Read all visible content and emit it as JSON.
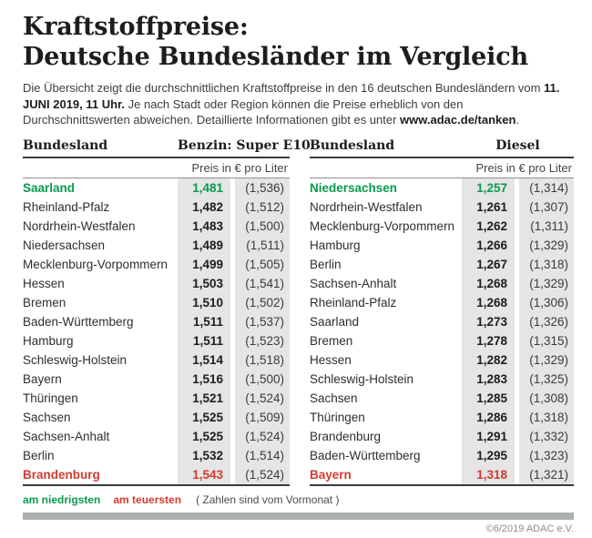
{
  "header": {
    "title_line1": "Kraftstoffpreise:",
    "title_line2": "Deutsche Bundesländer im Vergleich"
  },
  "intro": {
    "part1": "Die Übersicht zeigt die durchschnittlichen Kraftstoffpreise in den 16 deutschen Bundesländern vom ",
    "bold_date": "11. JUNI 2019, 11 Uhr.",
    "part2": " Je nach Stadt oder Region können die Preise erheblich von den Durchschnittswerten abweichen. Detaillierte Informationen gibt es unter ",
    "link": "www.adac.de/tanken",
    "part3": "."
  },
  "tables": [
    {
      "col_header": "Bundesland",
      "fuel_header": "Benzin: Super E10",
      "subheader": "Preis in € pro Liter",
      "rows": [
        {
          "name": "Saarland",
          "price": "1,481",
          "prev": "(1,536)",
          "highlight": "low"
        },
        {
          "name": "Rheinland-Pfalz",
          "price": "1,482",
          "prev": "(1,512)",
          "highlight": ""
        },
        {
          "name": "Nordrhein-Westfalen",
          "price": "1,483",
          "prev": "(1,500)",
          "highlight": ""
        },
        {
          "name": "Niedersachsen",
          "price": "1,489",
          "prev": "(1,511)",
          "highlight": ""
        },
        {
          "name": "Mecklenburg-Vorpommern",
          "price": "1,499",
          "prev": "(1,505)",
          "highlight": ""
        },
        {
          "name": "Hessen",
          "price": "1,503",
          "prev": "(1,541)",
          "highlight": ""
        },
        {
          "name": "Bremen",
          "price": "1,510",
          "prev": "(1,502)",
          "highlight": ""
        },
        {
          "name": "Baden-Württemberg",
          "price": "1,511",
          "prev": "(1,537)",
          "highlight": ""
        },
        {
          "name": "Hamburg",
          "price": "1,511",
          "prev": "(1,523)",
          "highlight": ""
        },
        {
          "name": "Schleswig-Holstein",
          "price": "1,514",
          "prev": "(1,518)",
          "highlight": ""
        },
        {
          "name": "Bayern",
          "price": "1,516",
          "prev": "(1,500)",
          "highlight": ""
        },
        {
          "name": "Thüringen",
          "price": "1,521",
          "prev": "(1,524)",
          "highlight": ""
        },
        {
          "name": "Sachsen",
          "price": "1,525",
          "prev": "(1,509)",
          "highlight": ""
        },
        {
          "name": "Sachsen-Anhalt",
          "price": "1,525",
          "prev": "(1,524)",
          "highlight": ""
        },
        {
          "name": "Berlin",
          "price": "1,532",
          "prev": "(1,514)",
          "highlight": ""
        },
        {
          "name": "Brandenburg",
          "price": "1,543",
          "prev": "(1,524)",
          "highlight": "high"
        }
      ]
    },
    {
      "col_header": "Bundesland",
      "fuel_header": "Diesel",
      "subheader": "Preis in € pro Liter",
      "rows": [
        {
          "name": "Niedersachsen",
          "price": "1,257",
          "prev": "(1,314)",
          "highlight": "low"
        },
        {
          "name": "Nordrhein-Westfalen",
          "price": "1,261",
          "prev": "(1,307)",
          "highlight": ""
        },
        {
          "name": "Mecklenburg-Vorpommern",
          "price": "1,262",
          "prev": "(1,311)",
          "highlight": ""
        },
        {
          "name": "Hamburg",
          "price": "1,266",
          "prev": "(1,329)",
          "highlight": ""
        },
        {
          "name": "Berlin",
          "price": "1,267",
          "prev": "(1,318)",
          "highlight": ""
        },
        {
          "name": "Sachsen-Anhalt",
          "price": "1,268",
          "prev": "(1,329)",
          "highlight": ""
        },
        {
          "name": "Rheinland-Pfalz",
          "price": "1,268",
          "prev": "(1,306)",
          "highlight": ""
        },
        {
          "name": "Saarland",
          "price": "1,273",
          "prev": "(1,326)",
          "highlight": ""
        },
        {
          "name": "Bremen",
          "price": "1,278",
          "prev": "(1,315)",
          "highlight": ""
        },
        {
          "name": "Hessen",
          "price": "1,282",
          "prev": "(1,329)",
          "highlight": ""
        },
        {
          "name": "Schleswig-Holstein",
          "price": "1,283",
          "prev": "(1,325)",
          "highlight": ""
        },
        {
          "name": "Sachsen",
          "price": "1,285",
          "prev": "(1,308)",
          "highlight": ""
        },
        {
          "name": "Thüringen",
          "price": "1,286",
          "prev": "(1,318)",
          "highlight": ""
        },
        {
          "name": "Brandenburg",
          "price": "1,291",
          "prev": "(1,332)",
          "highlight": ""
        },
        {
          "name": "Baden-Württemberg",
          "price": "1,295",
          "prev": "(1,323)",
          "highlight": ""
        },
        {
          "name": "Bayern",
          "price": "1,318",
          "prev": "(1,321)",
          "highlight": "high"
        }
      ]
    }
  ],
  "legend": {
    "lowest": "am niedrigsten",
    "highest": "am teuersten",
    "note": "( Zahlen sind vom Vormonat )"
  },
  "footer": {
    "copyright": "©6/2019 ADAC e.V."
  },
  "colors": {
    "lowest_green": "#089b4c",
    "highest_red": "#d23b31",
    "cell_background": "#e4e5e4",
    "divider_bar": "#adb0b0"
  },
  "chart_data": {
    "type": "table",
    "title": "Kraftstoffpreise: Deutsche Bundesländer im Vergleich",
    "date": "11. JUNI 2019, 11 Uhr",
    "unit": "Preis in € pro Liter",
    "note": "Zahlen in Klammern sind vom Vormonat",
    "tables": [
      {
        "fuel": "Benzin: Super E10",
        "columns": [
          "Bundesland",
          "Preis",
          "Vormonat"
        ],
        "rows": [
          [
            "Saarland",
            1.481,
            1.536
          ],
          [
            "Rheinland-Pfalz",
            1.482,
            1.512
          ],
          [
            "Nordrhein-Westfalen",
            1.483,
            1.5
          ],
          [
            "Niedersachsen",
            1.489,
            1.511
          ],
          [
            "Mecklenburg-Vorpommern",
            1.499,
            1.505
          ],
          [
            "Hessen",
            1.503,
            1.541
          ],
          [
            "Bremen",
            1.51,
            1.502
          ],
          [
            "Baden-Württemberg",
            1.511,
            1.537
          ],
          [
            "Hamburg",
            1.511,
            1.523
          ],
          [
            "Schleswig-Holstein",
            1.514,
            1.518
          ],
          [
            "Bayern",
            1.516,
            1.5
          ],
          [
            "Thüringen",
            1.521,
            1.524
          ],
          [
            "Sachsen",
            1.525,
            1.509
          ],
          [
            "Sachsen-Anhalt",
            1.525,
            1.524
          ],
          [
            "Berlin",
            1.532,
            1.514
          ],
          [
            "Brandenburg",
            1.543,
            1.524
          ]
        ],
        "lowest": "Saarland",
        "highest": "Brandenburg"
      },
      {
        "fuel": "Diesel",
        "columns": [
          "Bundesland",
          "Preis",
          "Vormonat"
        ],
        "rows": [
          [
            "Niedersachsen",
            1.257,
            1.314
          ],
          [
            "Nordrhein-Westfalen",
            1.261,
            1.307
          ],
          [
            "Mecklenburg-Vorpommern",
            1.262,
            1.311
          ],
          [
            "Hamburg",
            1.266,
            1.329
          ],
          [
            "Berlin",
            1.267,
            1.318
          ],
          [
            "Sachsen-Anhalt",
            1.268,
            1.329
          ],
          [
            "Rheinland-Pfalz",
            1.268,
            1.306
          ],
          [
            "Saarland",
            1.273,
            1.326
          ],
          [
            "Bremen",
            1.278,
            1.315
          ],
          [
            "Hessen",
            1.282,
            1.329
          ],
          [
            "Schleswig-Holstein",
            1.283,
            1.325
          ],
          [
            "Sachsen",
            1.285,
            1.308
          ],
          [
            "Thüringen",
            1.286,
            1.318
          ],
          [
            "Brandenburg",
            1.291,
            1.332
          ],
          [
            "Baden-Württemberg",
            1.295,
            1.323
          ],
          [
            "Bayern",
            1.318,
            1.321
          ]
        ],
        "lowest": "Niedersachsen",
        "highest": "Bayern"
      }
    ]
  }
}
